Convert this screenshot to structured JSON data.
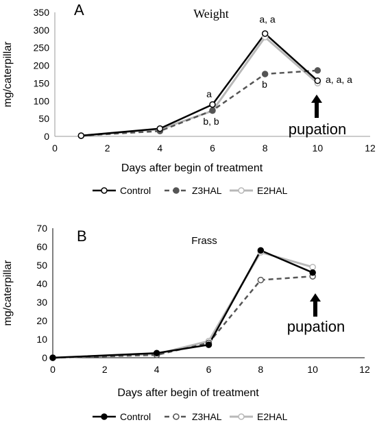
{
  "chart_data": [
    {
      "type": "line",
      "panel_label": "A",
      "title": "Weight",
      "xlabel": "Days after begin of treatment",
      "ylabel": "mg/caterpillar",
      "xlim": [
        0,
        12
      ],
      "ylim": [
        0,
        350
      ],
      "xticks": [
        "0",
        "2",
        "4",
        "6",
        "8",
        "10",
        "12"
      ],
      "yticks": [
        "0",
        "50",
        "100",
        "150",
        "200",
        "250",
        "300",
        "350"
      ],
      "grid": false,
      "legend_position": "bottom",
      "series": [
        {
          "name": "Control",
          "x": [
            1,
            4,
            6,
            8,
            10
          ],
          "y": [
            2,
            22,
            90,
            290,
            157
          ],
          "color": "#000000",
          "dash": "solid",
          "marker": "open-circle"
        },
        {
          "name": "Z3HAL",
          "x": [
            1,
            4,
            6,
            8,
            10
          ],
          "y": [
            2,
            15,
            73,
            176,
            186
          ],
          "color": "#555555",
          "dash": "dashed",
          "marker": "filled-circle"
        },
        {
          "name": "E2HAL",
          "x": [
            1,
            4,
            6,
            8,
            10
          ],
          "y": [
            2,
            20,
            72,
            280,
            150
          ],
          "color": "#b8b8b8",
          "dash": "solid",
          "marker": "open-circle"
        }
      ],
      "annotations": [
        {
          "text": "a, a",
          "x": 8,
          "y": 290,
          "placement": "above"
        },
        {
          "text": "a",
          "x": 6,
          "y": 90,
          "placement": "above"
        },
        {
          "text": "b, b",
          "x": 6,
          "y": 73,
          "placement": "below"
        },
        {
          "text": "b",
          "x": 8,
          "y": 176,
          "placement": "below"
        },
        {
          "text": "a, a, a",
          "x": 10,
          "y": 150,
          "placement": "right"
        }
      ],
      "pupation_label": "pupation"
    },
    {
      "type": "line",
      "panel_label": "B",
      "title": "Frass",
      "xlabel": "Days after begin of treatment",
      "ylabel": "mg/caterpillar",
      "xlim": [
        0,
        12
      ],
      "ylim": [
        0,
        70
      ],
      "xticks": [
        "0",
        "2",
        "4",
        "6",
        "8",
        "10",
        "12"
      ],
      "yticks": [
        "0",
        "10",
        "20",
        "30",
        "40",
        "50",
        "60",
        "70"
      ],
      "grid": false,
      "legend_position": "bottom",
      "series": [
        {
          "name": "Control",
          "x": [
            0,
            4,
            6,
            8,
            10
          ],
          "y": [
            0,
            2.5,
            7,
            58,
            46
          ],
          "color": "#000000",
          "dash": "solid",
          "marker": "filled-circle"
        },
        {
          "name": "Z3HAL",
          "x": [
            0,
            4,
            6,
            8,
            10
          ],
          "y": [
            0,
            1.5,
            8,
            42,
            44
          ],
          "color": "#555555",
          "dash": "dashed",
          "marker": "open-circle"
        },
        {
          "name": "E2HAL",
          "x": [
            0,
            4,
            6,
            8,
            10
          ],
          "y": [
            0,
            2,
            9,
            57,
            49
          ],
          "color": "#b8b8b8",
          "dash": "solid",
          "marker": "open-circle"
        }
      ],
      "annotations": [],
      "pupation_label": "pupation"
    }
  ]
}
